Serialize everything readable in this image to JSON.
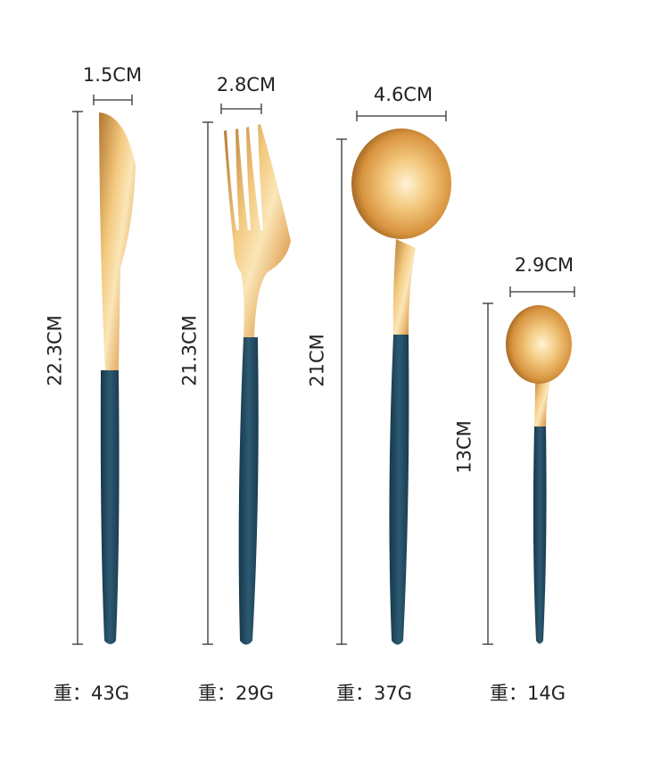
{
  "items": [
    {
      "name": "knife",
      "width_label": "1.5CM",
      "length_label": "22.3CM",
      "weight_label": "重：43G"
    },
    {
      "name": "fork",
      "width_label": "2.8CM",
      "length_label": "21.3CM",
      "weight_label": "重：29G"
    },
    {
      "name": "spoon",
      "width_label": "4.6CM",
      "length_label": "21CM",
      "weight_label": "重：37G"
    },
    {
      "name": "teaspoon",
      "width_label": "2.9CM",
      "length_label": "13CM",
      "weight_label": "重：14G"
    }
  ],
  "colors": {
    "gold": "#e8b466",
    "gold_light": "#fbe6b8",
    "gold_dark": "#b27630",
    "handle": "#244a5e",
    "line": "#333333"
  }
}
